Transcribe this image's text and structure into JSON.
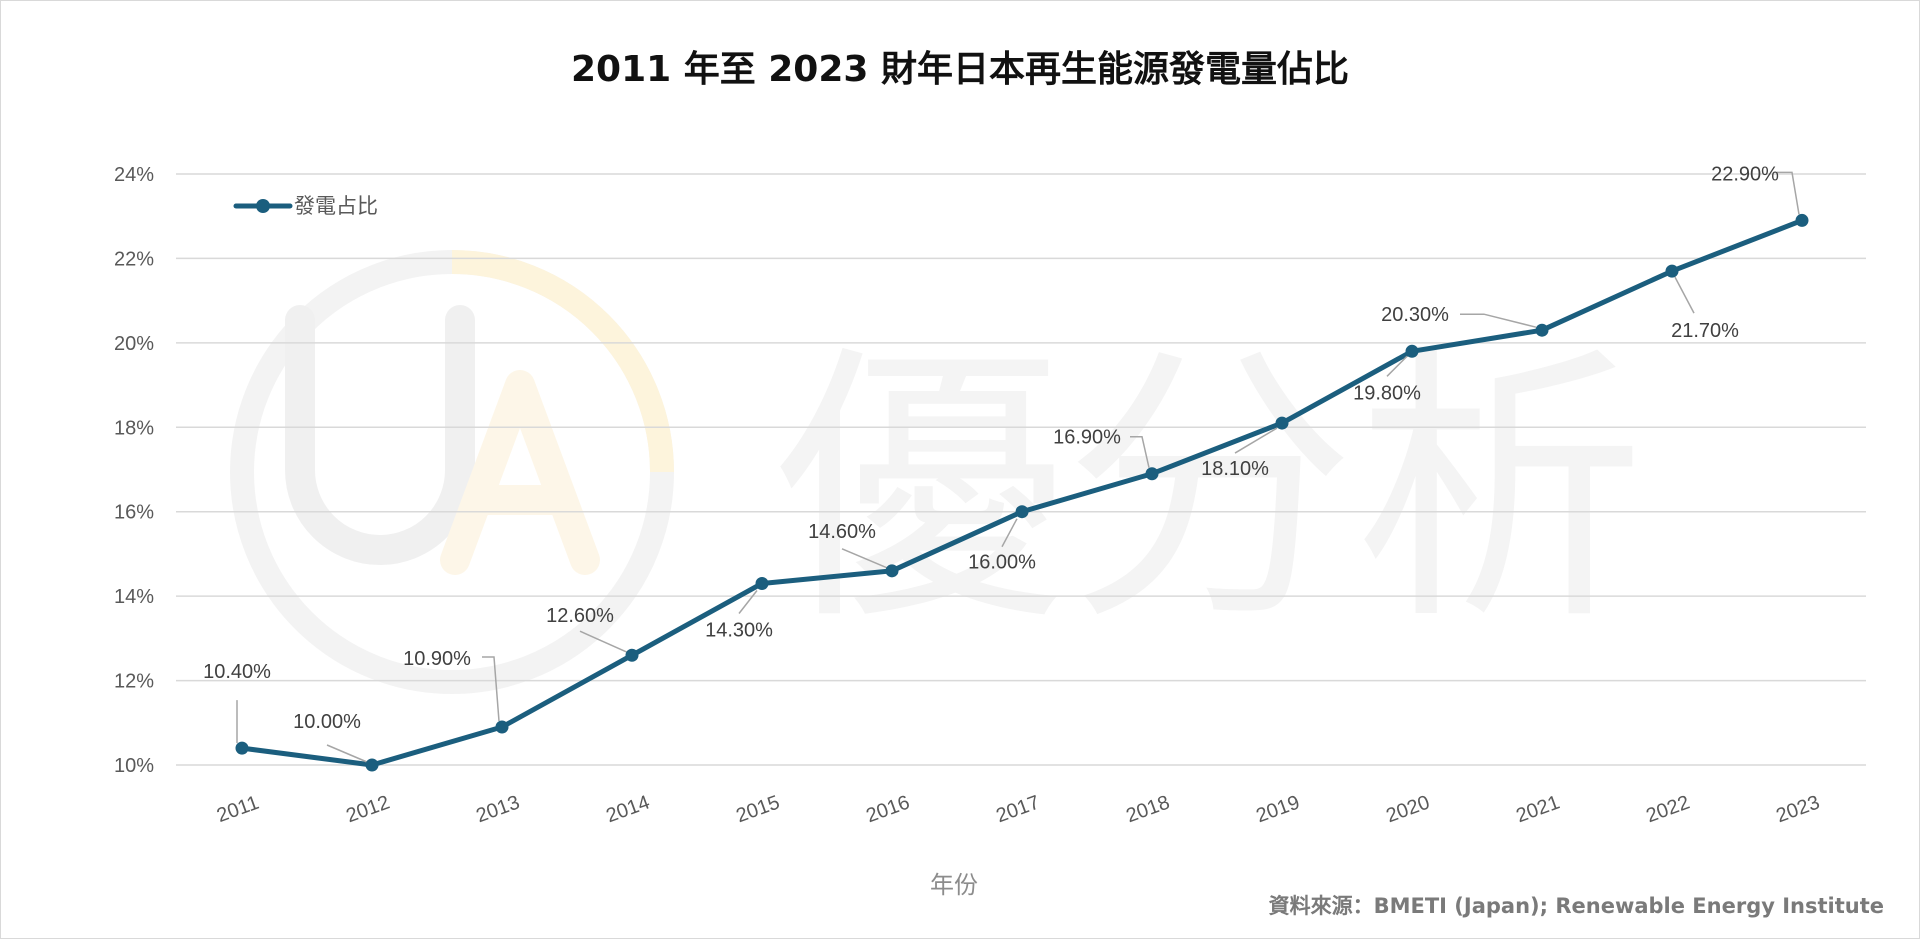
{
  "chart_data": {
    "type": "line",
    "title": "2011 年至 2023 財年日本再生能源發電量佔比",
    "xlabel": "年份",
    "ylabel": "",
    "categories": [
      "2011",
      "2012",
      "2013",
      "2014",
      "2015",
      "2016",
      "2017",
      "2018",
      "2019",
      "2020",
      "2021",
      "2022",
      "2023"
    ],
    "series": [
      {
        "name": "發電占比",
        "values": [
          10.4,
          10.0,
          10.9,
          12.6,
          14.3,
          14.6,
          16.0,
          16.9,
          18.1,
          19.8,
          20.3,
          21.7,
          22.9
        ],
        "labels": [
          "10.40%",
          "10.00%",
          "10.90%",
          "12.60%",
          "14.30%",
          "14.60%",
          "16.00%",
          "16.90%",
          "18.10%",
          "19.80%",
          "20.30%",
          "21.70%",
          "22.90%"
        ]
      }
    ],
    "ylim": [
      10,
      24
    ],
    "yticks": [
      "10%",
      "12%",
      "14%",
      "16%",
      "18%",
      "20%",
      "22%",
      "24%"
    ],
    "grid": true,
    "legend": "top-left",
    "colors": {
      "line": "#1b5e7e",
      "grid": "#d9d9d9",
      "text": "#595959",
      "leader": "#a6a6a6"
    }
  },
  "source": "資料來源：BMETI (Japan); Renewable Energy Institute",
  "watermark": {
    "text": "優分析"
  }
}
